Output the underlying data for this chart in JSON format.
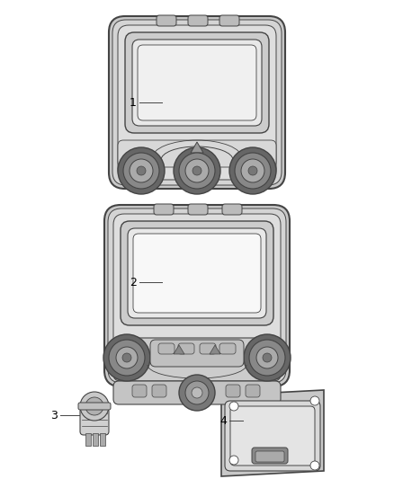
{
  "background_color": "#ffffff",
  "line_color": "#444444",
  "outer_fill": "#d0d0d0",
  "body_fill": "#e2e2e2",
  "screen_fill": "#f5f5f5",
  "knob_outer": "#888888",
  "knob_inner": "#aaaaaa",
  "knob_center": "#666666",
  "label_color": "#000000",
  "labels": [
    "1",
    "2",
    "3",
    "4"
  ],
  "figsize": [
    4.38,
    5.33
  ],
  "dpi": 100
}
